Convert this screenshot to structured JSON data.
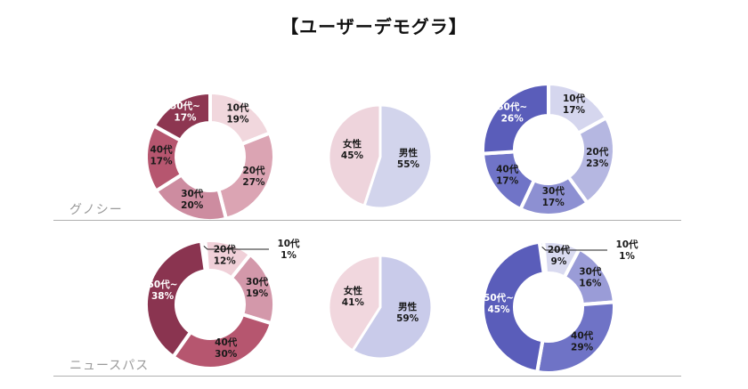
{
  "title": "【ユーザーデモグラ】",
  "rows": [
    {
      "label": "グノシー"
    },
    {
      "label": "ニュースパス"
    }
  ],
  "chart_data": [
    {
      "type": "pie",
      "variant": "donut",
      "row": "グノシー",
      "icon": "female-icon",
      "slices": [
        {
          "label": "10代",
          "value": 19,
          "color": "#f1d7dd",
          "text": "10代\n19%"
        },
        {
          "label": "20代",
          "value": 27,
          "color": "#dba4b3",
          "text": "20代\n27%"
        },
        {
          "label": "30代",
          "value": 20,
          "color": "#cd8ca0",
          "text": "30代\n20%"
        },
        {
          "label": "40代",
          "value": 17,
          "color": "#b6566f",
          "text": "40代\n17%"
        },
        {
          "label": "50代~",
          "value": 17,
          "color": "#8d3651",
          "text": "50代~\n17%",
          "textColor": "#ffffff"
        }
      ]
    },
    {
      "type": "pie",
      "variant": "pie",
      "row": "グノシー",
      "icon": "",
      "slices": [
        {
          "label": "男性",
          "value": 55,
          "color": "#d2d4ec",
          "text": "男性\n55%"
        },
        {
          "label": "女性",
          "value": 45,
          "color": "#eed4dc",
          "text": "女性\n45%"
        }
      ]
    },
    {
      "type": "pie",
      "variant": "donut",
      "row": "グノシー",
      "icon": "male-icon",
      "slices": [
        {
          "label": "10代",
          "value": 17,
          "color": "#d5d6ee",
          "text": "10代\n17%"
        },
        {
          "label": "20代",
          "value": 23,
          "color": "#b5b7e1",
          "text": "20代\n23%"
        },
        {
          "label": "30代",
          "value": 17,
          "color": "#8d90d2",
          "text": "30代\n17%"
        },
        {
          "label": "40代",
          "value": 17,
          "color": "#7074c7",
          "text": "40代\n17%"
        },
        {
          "label": "50代~",
          "value": 26,
          "color": "#5a5dba",
          "text": "50代~\n26%",
          "textColor": "#ffffff"
        }
      ]
    },
    {
      "type": "pie",
      "variant": "donut",
      "row": "ニュースパス",
      "icon": "female-icon",
      "slices": [
        {
          "label": "10代",
          "value": 1,
          "color": "#f1d7dd",
          "text": "10代\n1%",
          "callout": true
        },
        {
          "label": "20代",
          "value": 12,
          "color": "#f0d0d8",
          "text": "20代\n12%"
        },
        {
          "label": "30代",
          "value": 19,
          "color": "#d398aa",
          "text": "30代\n19%"
        },
        {
          "label": "40代",
          "value": 30,
          "color": "#b6566f",
          "text": "40代\n30%"
        },
        {
          "label": "50代~",
          "value": 38,
          "color": "#8a3450",
          "text": "50代~\n38%",
          "textColor": "#ffffff"
        }
      ]
    },
    {
      "type": "pie",
      "variant": "pie",
      "row": "ニュースパス",
      "icon": "",
      "slices": [
        {
          "label": "男性",
          "value": 59,
          "color": "#c9cbea",
          "text": "男性\n59%"
        },
        {
          "label": "女性",
          "value": 41,
          "color": "#f1d7de",
          "text": "女性\n41%"
        }
      ]
    },
    {
      "type": "pie",
      "variant": "donut",
      "row": "ニュースパス",
      "icon": "male-icon",
      "slices": [
        {
          "label": "10代",
          "value": 1,
          "color": "#d5d6ee",
          "text": "10代\n1%",
          "callout": true
        },
        {
          "label": "20代",
          "value": 9,
          "color": "#d9daf0",
          "text": "20代\n9%"
        },
        {
          "label": "30代",
          "value": 16,
          "color": "#9a9cd7",
          "text": "30代\n16%"
        },
        {
          "label": "40代",
          "value": 29,
          "color": "#6f73c6",
          "text": "40代\n29%"
        },
        {
          "label": "50代~",
          "value": 45,
          "color": "#5a5dba",
          "text": "50代~\n45%",
          "textColor": "#ffffff"
        }
      ]
    }
  ]
}
